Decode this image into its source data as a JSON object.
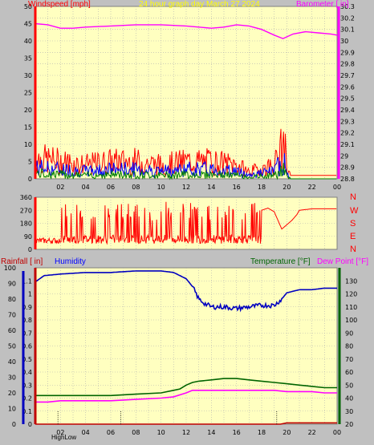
{
  "header": {
    "windspeed_label": "Windspeed [mph]",
    "title": "24 hour graph day   March 27 2024",
    "barometer_label": "Barometer [ in]"
  },
  "middle": {
    "compass_labels": [
      "N",
      "W",
      "S",
      "E",
      "N"
    ]
  },
  "bottom_header": {
    "rainfall_label": "Rainfall [ in]",
    "humidity_label": "Humidity",
    "temperature_label": "Temperature [°F]",
    "dewpoint_label": "Dew Point [°F]"
  },
  "footer": {
    "stats_text": "HighLow"
  },
  "colors": {
    "wind": "#ff0000",
    "gust_blue": "#0000ff",
    "gust_green": "#008000",
    "barometer": "#ff00ff",
    "direction": "#ff0000",
    "humidity": "#0000c0",
    "temperature": "#006400",
    "dewpoint": "#ff00ff",
    "rain": "#c00000",
    "plot_bg": "#ffffc0",
    "title_color": "#ffff00"
  },
  "chart_data": [
    {
      "type": "area",
      "x_tick_labels": [
        "02",
        "04",
        "06",
        "08",
        "10",
        "12",
        "14",
        "16",
        "18",
        "20",
        "22",
        "00"
      ],
      "left_axis": {
        "ylim": [
          0,
          50
        ],
        "tick_labels": [
          "0",
          "5",
          "10",
          "15",
          "20",
          "25",
          "30",
          "35",
          "40",
          "45",
          "50"
        ]
      },
      "right_axis": {
        "ylim": [
          28.8,
          30.3
        ],
        "tick_labels": [
          "28.8",
          "28.9",
          "29",
          "29.1",
          "29.2",
          "29.3",
          "29.4",
          "29.5",
          "29.6",
          "29.7",
          "29.8",
          "29.9",
          "30",
          "30.1",
          "30.2",
          "30.3"
        ]
      },
      "series": [
        {
          "name": "Windspeed [mph]",
          "axis": "left",
          "x_hours": [
            0,
            2,
            4,
            6,
            8,
            10,
            12,
            14,
            16,
            17,
            19,
            19.5,
            19.8,
            20,
            20.3,
            21,
            24
          ],
          "values": [
            6,
            5,
            4,
            5,
            5,
            4,
            5,
            5,
            4,
            2,
            4,
            8,
            11,
            2,
            1,
            1,
            1
          ]
        },
        {
          "name": "Barometer [ in]",
          "axis": "right",
          "x_hours": [
            0,
            1,
            2,
            3,
            4,
            6,
            8,
            10,
            12,
            14,
            15,
            16,
            17,
            18,
            19,
            19.7,
            20.5,
            21.5,
            22.5,
            23.5,
            24
          ],
          "values": [
            30.15,
            30.14,
            30.11,
            30.11,
            30.12,
            30.13,
            30.14,
            30.14,
            30.13,
            30.11,
            30.12,
            30.14,
            30.13,
            30.1,
            30.05,
            30.02,
            30.06,
            30.08,
            30.07,
            30.06,
            30.05
          ]
        }
      ]
    },
    {
      "type": "line",
      "x_tick_labels": [
        "02",
        "04",
        "06",
        "08",
        "10",
        "12",
        "14",
        "16",
        "18",
        "20",
        "22",
        "00"
      ],
      "ylim": [
        0,
        360
      ],
      "y_tick_labels": [
        "0",
        "90",
        "180",
        "270",
        "360"
      ],
      "series": [
        {
          "name": "Wind direction",
          "x_hours": [
            0,
            1,
            1.8,
            2.6,
            3.2,
            4,
            5,
            6,
            7,
            8,
            9,
            10,
            11,
            12,
            13,
            14,
            15,
            15.5,
            16,
            17,
            18,
            18.5,
            19,
            19.3,
            19.6,
            20,
            20.4,
            20.8,
            21,
            22,
            23,
            24
          ],
          "values": [
            60,
            70,
            80,
            330,
            60,
            70,
            90,
            300,
            80,
            320,
            60,
            330,
            70,
            80,
            320,
            60,
            330,
            80,
            290,
            290,
            270,
            285,
            260,
            200,
            140,
            170,
            200,
            240,
            270,
            280,
            280,
            280
          ]
        }
      ]
    },
    {
      "type": "line",
      "x_tick_labels": [
        "02",
        "04",
        "06",
        "08",
        "10",
        "12",
        "14",
        "16",
        "18",
        "20",
        "22",
        "00"
      ],
      "humidity_axis": {
        "ylim": [
          0,
          100
        ],
        "tick_labels": [
          "0",
          "10",
          "20",
          "30",
          "40",
          "50",
          "60",
          "70",
          "80",
          "90",
          "100"
        ]
      },
      "rain_axis": {
        "ylim": [
          0,
          1.2
        ],
        "tick_labels": [
          "0",
          "0.1",
          "0.2",
          "0.3",
          "0.4",
          "0.5",
          "0.6",
          "0.7",
          "0.8",
          "0.9",
          "1",
          "1.1"
        ]
      },
      "temp_axis": {
        "ylim": [
          20,
          140
        ],
        "tick_labels": [
          "20",
          "30",
          "40",
          "50",
          "60",
          "70",
          "80",
          "90",
          "100",
          "110",
          "120",
          "130"
        ]
      },
      "series": [
        {
          "name": "Humidity",
          "axis": "humidity",
          "x_hours": [
            0,
            0.7,
            2,
            4,
            6,
            8,
            10,
            11,
            11.5,
            12,
            12.5,
            13,
            13.5,
            14,
            15,
            16,
            17,
            18,
            19,
            19.6,
            20,
            21,
            22,
            23,
            24
          ],
          "values": [
            91,
            95,
            96,
            97,
            97,
            98,
            98,
            97,
            95,
            93,
            88,
            80,
            77,
            75,
            75,
            74,
            75,
            76,
            76,
            80,
            84,
            86,
            86,
            87,
            87
          ]
        },
        {
          "name": "Temperature [°F]",
          "axis": "temp",
          "x_hours": [
            0,
            2,
            4,
            6,
            8,
            10,
            11,
            11.5,
            12,
            12.5,
            13,
            14,
            15,
            16,
            17,
            18,
            19,
            20,
            21,
            22,
            23,
            24
          ],
          "values": [
            42,
            42,
            42,
            42,
            43,
            44,
            46,
            47,
            50,
            52,
            53,
            54,
            55,
            55,
            54,
            53,
            52,
            51,
            50,
            49,
            48,
            48
          ]
        },
        {
          "name": "Dew Point [°F]",
          "axis": "temp",
          "x_hours": [
            0,
            1,
            2,
            4,
            6,
            8,
            10,
            11,
            12,
            12.5,
            13,
            14,
            15,
            16,
            17,
            18,
            19,
            20,
            21,
            22,
            23,
            24
          ],
          "values": [
            37,
            37,
            38,
            38,
            38,
            39,
            40,
            41,
            44,
            46,
            46,
            46,
            46,
            46,
            46,
            46,
            46,
            45,
            45,
            45,
            44,
            44
          ]
        },
        {
          "name": "Rainfall [ in]",
          "axis": "rain",
          "x_hours": [
            0,
            19.5,
            20,
            24
          ],
          "values": [
            0,
            0,
            0.01,
            0.01
          ]
        }
      ]
    }
  ]
}
